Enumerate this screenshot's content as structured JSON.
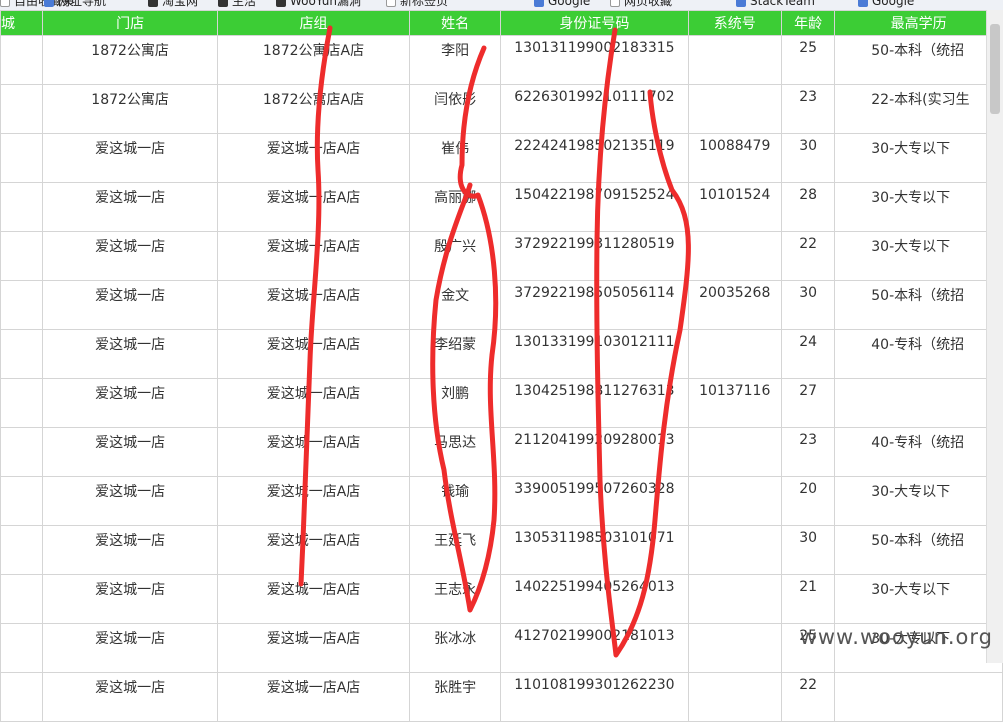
{
  "bookmarks": [
    {
      "label": "自由收藏夹",
      "icon": "page-icon"
    },
    {
      "label": "网址导航",
      "icon": "globe-icon"
    },
    {
      "label": "淘宝网",
      "icon": "folder-icon"
    },
    {
      "label": "生活",
      "icon": "folder-icon"
    },
    {
      "label": "WooYun漏洞",
      "icon": "folder-icon"
    },
    {
      "label": "新标签页",
      "icon": "page-icon"
    },
    {
      "label": "Google",
      "icon": "globe-icon"
    },
    {
      "label": "网页收藏",
      "icon": "page-icon"
    },
    {
      "label": "StackTeam",
      "icon": "globe-icon"
    },
    {
      "label": "Google",
      "icon": "globe-icon"
    }
  ],
  "table": {
    "columns": [
      "城",
      "门店",
      "店组",
      "姓名",
      "身份证号码",
      "系统号",
      "年龄",
      "最高学历"
    ],
    "rows": [
      [
        "",
        "1872公寓店",
        "1872公寓店A店",
        "李阳",
        "130131199002183315",
        "",
        "25",
        "50-本科（统招"
      ],
      [
        "",
        "1872公寓店",
        "1872公寓店A店",
        "闫依彤",
        "622630199210111702",
        "",
        "23",
        "22-本科(实习生"
      ],
      [
        "",
        "爱这城一店",
        "爱这城一店A店",
        "崔伟",
        "222424198502135119",
        "10088479",
        "30",
        "30-大专以下"
      ],
      [
        "",
        "爱这城一店",
        "爱这城一店A店",
        "高丽娜",
        "150422198709152524",
        "10101524",
        "28",
        "30-大专以下"
      ],
      [
        "",
        "爱这城一店",
        "爱这城一店A店",
        "殷广兴",
        "372922199311280519",
        "",
        "22",
        "30-大专以下"
      ],
      [
        "",
        "爱这城一店",
        "爱这城一店A店",
        "金文",
        "372922198505056114",
        "20035268",
        "30",
        "50-本科（统招"
      ],
      [
        "",
        "爱这城一店",
        "爱这城一店A店",
        "李绍蒙",
        "130133199103012111",
        "",
        "24",
        "40-专科（统招"
      ],
      [
        "",
        "爱这城一店",
        "爱这城一店A店",
        "刘鹏",
        "130425198811276313",
        "10137116",
        "27",
        ""
      ],
      [
        "",
        "爱这城一店",
        "爱这城一店A店",
        "马思达",
        "211204199209280013",
        "",
        "23",
        "40-专科（统招"
      ],
      [
        "",
        "爱这城一店",
        "爱这城一店A店",
        "钱瑜",
        "339005199507260328",
        "",
        "20",
        "30-大专以下"
      ],
      [
        "",
        "爱这城一店",
        "爱这城一店A店",
        "王延飞",
        "130531198503101071",
        "",
        "30",
        "50-本科（统招"
      ],
      [
        "",
        "爱这城一店",
        "爱这城一店A店",
        "王志永",
        "140225199405264013",
        "",
        "21",
        "30-大专以下"
      ],
      [
        "",
        "爱这城一店",
        "爱这城一店A店",
        "张冰冰",
        "412702199002181013",
        "",
        "25",
        "30-大专以下"
      ],
      [
        "",
        "爱这城一店",
        "爱这城一店A店",
        "张胜宇",
        "110108199301262230",
        "",
        "22",
        ""
      ]
    ]
  },
  "watermark": "www.wooyun.org",
  "colors": {
    "header_bg": "#3ccd35",
    "scribble": "#ee2c2c"
  }
}
